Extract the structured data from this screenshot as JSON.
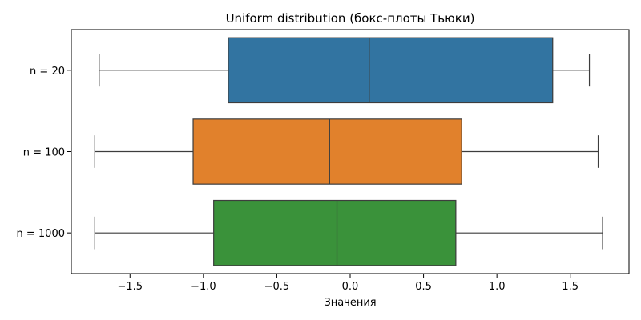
{
  "chart_data": {
    "type": "boxplot",
    "orientation": "horizontal",
    "title": "Uniform distribution (бокс-плоты Тьюки)",
    "xlabel": "Значения",
    "ylabel": "",
    "xlim": [
      -1.9,
      1.9
    ],
    "xticks": [
      -1.5,
      -1.0,
      -0.5,
      0.0,
      0.5,
      1.0,
      1.5
    ],
    "xtick_labels": [
      "−1.5",
      "−1.0",
      "−0.5",
      "0.0",
      "0.5",
      "1.0",
      "1.5"
    ],
    "grid": false,
    "legend": "none",
    "categories": [
      "n = 20",
      "n = 100",
      "n = 1000"
    ],
    "series": [
      {
        "category": "n = 20",
        "color": "#3274a1",
        "whisker_low": -1.71,
        "q1": -0.83,
        "median": 0.13,
        "q3": 1.38,
        "whisker_high": 1.63
      },
      {
        "category": "n = 100",
        "color": "#e1812c",
        "whisker_low": -1.74,
        "q1": -1.07,
        "median": -0.14,
        "q3": 0.76,
        "whisker_high": 1.69
      },
      {
        "category": "n = 1000",
        "color": "#3a923a",
        "whisker_low": -1.74,
        "q1": -0.93,
        "median": -0.09,
        "q3": 0.72,
        "whisker_high": 1.72
      }
    ]
  }
}
